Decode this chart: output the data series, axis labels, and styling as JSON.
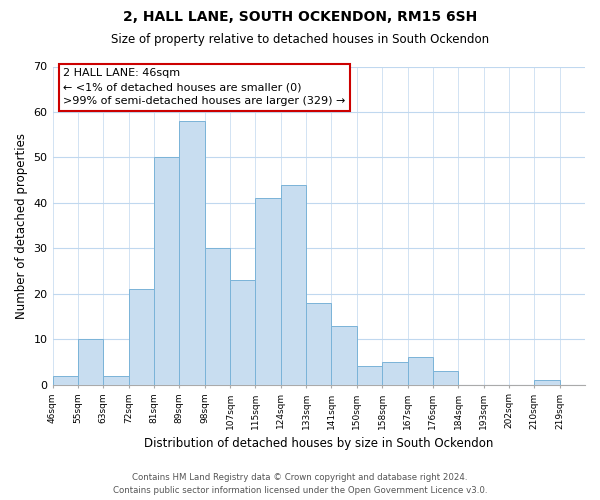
{
  "title": "2, HALL LANE, SOUTH OCKENDON, RM15 6SH",
  "subtitle": "Size of property relative to detached houses in South Ockendon",
  "xlabel": "Distribution of detached houses by size in South Ockendon",
  "ylabel": "Number of detached properties",
  "bar_color": "#c8ddf0",
  "bar_edge_color": "#7ab3d8",
  "bins": [
    "46sqm",
    "55sqm",
    "63sqm",
    "72sqm",
    "81sqm",
    "89sqm",
    "98sqm",
    "107sqm",
    "115sqm",
    "124sqm",
    "133sqm",
    "141sqm",
    "150sqm",
    "158sqm",
    "167sqm",
    "176sqm",
    "184sqm",
    "193sqm",
    "202sqm",
    "210sqm",
    "219sqm"
  ],
  "values": [
    2,
    10,
    2,
    21,
    50,
    58,
    30,
    23,
    41,
    44,
    18,
    13,
    4,
    5,
    6,
    3,
    0,
    0,
    0,
    1,
    0
  ],
  "ylim": [
    0,
    70
  ],
  "yticks": [
    0,
    10,
    20,
    30,
    40,
    50,
    60,
    70
  ],
  "annotation_line1": "2 HALL LANE: 46sqm",
  "annotation_line2": "← <1% of detached houses are smaller (0)",
  "annotation_line3": ">99% of semi-detached houses are larger (329) →",
  "annotation_box_edge_color": "#cc0000",
  "footer_line1": "Contains HM Land Registry data © Crown copyright and database right 2024.",
  "footer_line2": "Contains public sector information licensed under the Open Government Licence v3.0.",
  "background_color": "#ffffff",
  "grid_color": "#c0d8ef"
}
